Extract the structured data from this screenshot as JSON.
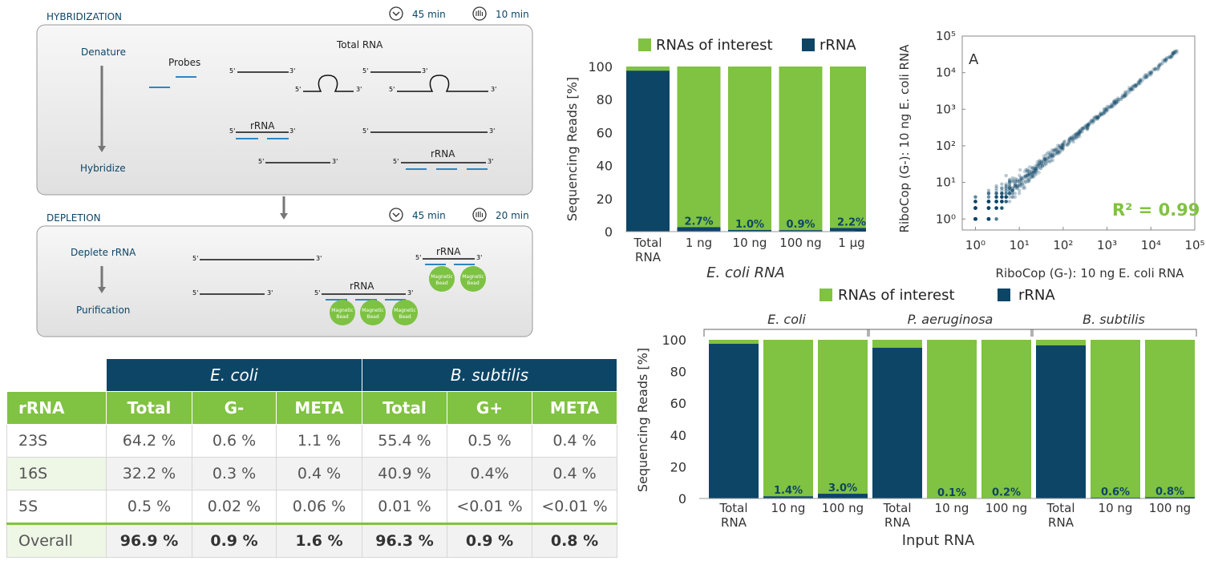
{
  "colors": {
    "green": "#80c241",
    "navy": "#0d4566",
    "probe": "#2e86c1",
    "panel": "#eeeeee",
    "bead": "#7dc242"
  },
  "diagram": {
    "hyb_title": "HYBRIDIZATION",
    "hyb_time1": "45 min",
    "hyb_time2": "10 min",
    "denature": "Denature",
    "hybridize": "Hybridize",
    "probes": "Probes",
    "total_rna": "Total RNA",
    "rrna": "rRNA",
    "five": "5'",
    "three": "3'",
    "dep_title": "DEPLETION",
    "dep_time1": "45 min",
    "dep_time2": "20 min",
    "deplete": "Deplete rRNA",
    "purification": "Purification",
    "bead1": "Magnetic",
    "bead2": "Bead",
    "clock_icon": "clock-icon",
    "hand_icon": "hand-icon"
  },
  "table": {
    "groups": [
      "E. coli",
      "B. subtilis"
    ],
    "headers": [
      "rRNA",
      "Total",
      "G-",
      "META",
      "Total",
      "G+",
      "META"
    ],
    "rows": [
      [
        "23S",
        "64.2 %",
        "0.6 %",
        "1.1 %",
        "55.4 %",
        "0.5 %",
        "0.4 %"
      ],
      [
        "16S",
        "32.2 %",
        "0.3 %",
        "0.4 %",
        "40.9 %",
        "0.4%",
        "0.4 %"
      ],
      [
        "5S",
        "0.5 %",
        "0.02 %",
        "0.06 %",
        "0.01 %",
        "<0.01 %",
        "<0.01 %"
      ],
      [
        "Overall",
        "96.9 %",
        "0.9 %",
        "1.6 %",
        "96.3 %",
        "0.9 %",
        "0.8 %"
      ]
    ]
  },
  "chart_data": [
    {
      "type": "bar",
      "stacked": true,
      "legend": [
        "RNAs of interest",
        "rRNA"
      ],
      "legend_placement": "top",
      "ylabel": "Sequencing Reads [%]",
      "xlabel": "E. coli RNA",
      "ylim": [
        0,
        100
      ],
      "yticks": [
        0,
        20,
        40,
        60,
        80,
        100
      ],
      "categories": [
        "Total RNA",
        "1 ng",
        "10 ng",
        "100 ng",
        "1 µg"
      ],
      "series": [
        {
          "name": "rRNA",
          "values": [
            97.5,
            2.7,
            1.0,
            0.9,
            2.2
          ]
        },
        {
          "name": "RNAs of interest",
          "values": [
            2.5,
            97.3,
            99.0,
            99.1,
            97.8
          ]
        }
      ],
      "data_labels": [
        "",
        "2.7%",
        "1.0%",
        "0.9%",
        "2.2%"
      ]
    },
    {
      "type": "scatter",
      "panel_label": "A",
      "xlabel": "RiboCop (G-): 10 ng E. coli RNA",
      "ylabel": "RiboCop (G-): 10 ng E. coli RNA",
      "log_scale": true,
      "xlim": [
        0.5,
        100000
      ],
      "ylim": [
        0.5,
        100000
      ],
      "ticks": [
        "10⁰",
        "10¹",
        "10²",
        "10³",
        "10⁴",
        "10⁵"
      ],
      "annotation": "R² = 0.99",
      "r_squared": 0.99
    },
    {
      "type": "bar",
      "stacked": true,
      "legend": [
        "RNAs of interest",
        "rRNA"
      ],
      "legend_placement": "top",
      "ylabel": "Sequencing Reads [%]",
      "xlabel": "Input RNA",
      "ylim": [
        0,
        100
      ],
      "yticks": [
        0,
        20,
        40,
        60,
        80,
        100
      ],
      "groups": [
        "E. coli",
        "P. aeruginosa",
        "B. subtilis"
      ],
      "categories": [
        "Total RNA",
        "10 ng",
        "100 ng",
        "Total RNA",
        "10 ng",
        "100 ng",
        "Total RNA",
        "10 ng",
        "100 ng"
      ],
      "series": [
        {
          "name": "rRNA",
          "values": [
            97.5,
            1.4,
            3.0,
            95,
            0.1,
            0.2,
            96.5,
            0.6,
            0.8
          ]
        },
        {
          "name": "RNAs of interest",
          "values": [
            2.5,
            98.6,
            97.0,
            5,
            99.9,
            99.8,
            3.5,
            99.4,
            99.2
          ]
        }
      ],
      "data_labels": [
        "",
        "1.4%",
        "3.0%",
        "",
        "0.1%",
        "0.2%",
        "",
        "0.6%",
        "0.8%"
      ]
    }
  ]
}
